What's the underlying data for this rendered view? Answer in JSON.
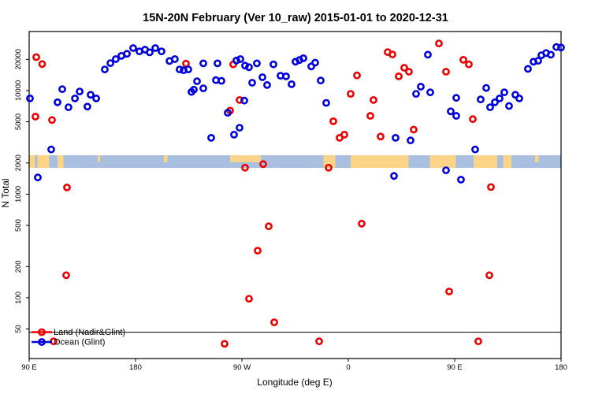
{
  "title": "15N-20N February (Ver 10_raw)   2015-01-01 to 2020-12-31",
  "chart_data": {
    "type": "scatter",
    "title": "15N-20N February (Ver 10_raw)   2015-01-01 to 2020-12-31",
    "xlabel": "Longitude (deg E)",
    "ylabel": "N Total",
    "y_scale": "log",
    "ylim": [
      43,
      32000
    ],
    "y_ticks": [
      50,
      100,
      200,
      500,
      1000,
      2000,
      5000,
      10000,
      20000
    ],
    "x_ticks": [
      {
        "pos": 0,
        "label": "90 E"
      },
      {
        "pos": 90,
        "label": "180"
      },
      {
        "pos": 180,
        "label": "90 W"
      },
      {
        "pos": 270,
        "label": "0"
      },
      {
        "pos": 360,
        "label": "90 E"
      },
      {
        "pos": 450,
        "label": "180"
      }
    ],
    "x_axis_span_deg": 450,
    "grid": false,
    "threshold_n": 46.5,
    "legend_position": "bottom-left",
    "legend": [
      {
        "label": "Land (Nadir&Glint)",
        "color": "#EE0000"
      },
      {
        "label": "Ocean (Glint)",
        "color": "#0000DD"
      }
    ],
    "map_band": {
      "n_top": 2375,
      "n_bottom": 1795,
      "ocean_color": "#A9BFDF",
      "land_color": "#FBD488",
      "land_segments": [
        {
          "from": 0,
          "to": 5,
          "half": false
        },
        {
          "from": 7,
          "to": 17,
          "half": false
        },
        {
          "from": 24,
          "to": 29,
          "half": false
        },
        {
          "from": 58,
          "to": 60,
          "half": true
        },
        {
          "from": 114,
          "to": 117,
          "half": true
        },
        {
          "from": 170,
          "to": 196,
          "half": true
        },
        {
          "from": 249,
          "to": 259,
          "half": false
        },
        {
          "from": 272,
          "to": 321,
          "half": false
        },
        {
          "from": 339,
          "to": 361,
          "half": false
        },
        {
          "from": 376,
          "to": 396,
          "half": false
        },
        {
          "from": 401,
          "to": 408,
          "half": false
        },
        {
          "from": 428,
          "to": 431,
          "half": true
        }
      ]
    },
    "series": [
      {
        "name": "Land (Nadir&Glint)",
        "color": "#EE0000",
        "points": [
          [
            6,
            21000
          ],
          [
            11,
            18000
          ],
          [
            5.3,
            5600
          ],
          [
            19.3,
            5200
          ],
          [
            32,
            1160
          ],
          [
            31.3,
            165
          ],
          [
            20.7,
            38
          ],
          [
            132.7,
            18200
          ],
          [
            172.7,
            17900
          ],
          [
            178,
            8100
          ],
          [
            170,
            6400
          ],
          [
            182.7,
            1800
          ],
          [
            198,
            1950
          ],
          [
            202.7,
            490
          ],
          [
            193.3,
            285
          ],
          [
            186,
            98
          ],
          [
            207.3,
            58
          ],
          [
            165.3,
            36
          ],
          [
            245.3,
            38
          ],
          [
            253.3,
            1800
          ],
          [
            257.3,
            5050
          ],
          [
            262.7,
            3500
          ],
          [
            266.7,
            3750
          ],
          [
            272,
            9300
          ],
          [
            277.3,
            14000
          ],
          [
            281.3,
            520
          ],
          [
            288.7,
            5700
          ],
          [
            291.3,
            8100
          ],
          [
            297.3,
            3600
          ],
          [
            303.3,
            23500
          ],
          [
            307.3,
            22300
          ],
          [
            312.7,
            13700
          ],
          [
            317.3,
            16600
          ],
          [
            321.3,
            15200
          ],
          [
            325.3,
            4200
          ],
          [
            346.7,
            28500
          ],
          [
            352.7,
            15200
          ],
          [
            355.3,
            115
          ],
          [
            367.3,
            19800
          ],
          [
            372,
            17900
          ],
          [
            375.3,
            5300
          ],
          [
            380,
            38
          ],
          [
            389.3,
            165
          ],
          [
            390.7,
            1170
          ]
        ]
      },
      {
        "name": "Ocean (Glint)",
        "color": "#0000DD",
        "points": [
          [
            0.7,
            8400
          ],
          [
            7.3,
            1450
          ],
          [
            18.7,
            2700
          ],
          [
            24,
            7700
          ],
          [
            28,
            10300
          ],
          [
            33.3,
            6900
          ],
          [
            38.7,
            8400
          ],
          [
            42.7,
            9800
          ],
          [
            49.3,
            7000
          ],
          [
            52,
            9100
          ],
          [
            56.7,
            8400
          ],
          [
            64,
            16000
          ],
          [
            68.7,
            18400
          ],
          [
            73.3,
            20100
          ],
          [
            78,
            21600
          ],
          [
            82.7,
            22600
          ],
          [
            88,
            25700
          ],
          [
            93.3,
            23900
          ],
          [
            98,
            24800
          ],
          [
            102,
            23400
          ],
          [
            106.7,
            25700
          ],
          [
            112,
            23900
          ],
          [
            118.7,
            19300
          ],
          [
            123.3,
            20100
          ],
          [
            127.3,
            16000
          ],
          [
            130.7,
            15700
          ],
          [
            134.7,
            16000
          ],
          [
            137.3,
            9700
          ],
          [
            139.3,
            10200
          ],
          [
            142,
            12300
          ],
          [
            147.3,
            18300
          ],
          [
            147.3,
            10500
          ],
          [
            154,
            3500
          ],
          [
            158,
            12600
          ],
          [
            159.3,
            18300
          ],
          [
            162.7,
            12400
          ],
          [
            168,
            6100
          ],
          [
            173.3,
            3750
          ],
          [
            175.3,
            19500
          ],
          [
            178,
            4380
          ],
          [
            178.7,
            20100
          ],
          [
            182,
            8000
          ],
          [
            182.7,
            17400
          ],
          [
            186,
            16800
          ],
          [
            188.7,
            11900
          ],
          [
            192.7,
            18300
          ],
          [
            197.3,
            13450
          ],
          [
            201.3,
            11300
          ],
          [
            206.7,
            17900
          ],
          [
            212.7,
            13900
          ],
          [
            217.3,
            13700
          ],
          [
            222,
            11500
          ],
          [
            225.3,
            19000
          ],
          [
            228.7,
            19700
          ],
          [
            232,
            20500
          ],
          [
            238.7,
            17100
          ],
          [
            242,
            18600
          ],
          [
            246.7,
            12500
          ],
          [
            251.3,
            7600
          ],
          [
            308.7,
            1500
          ],
          [
            310,
            3500
          ],
          [
            322.7,
            3300
          ],
          [
            327.3,
            9300
          ],
          [
            331.3,
            10900
          ],
          [
            337.3,
            22200
          ],
          [
            339.3,
            9600
          ],
          [
            352.7,
            1700
          ],
          [
            356.7,
            6300
          ],
          [
            361.3,
            8500
          ],
          [
            361.3,
            5700
          ],
          [
            365.3,
            1380
          ],
          [
            377.3,
            2700
          ],
          [
            382,
            8200
          ],
          [
            386.7,
            10600
          ],
          [
            390,
            6900
          ],
          [
            394,
            7700
          ],
          [
            398,
            8400
          ],
          [
            402,
            9600
          ],
          [
            406,
            7100
          ],
          [
            411.3,
            9100
          ],
          [
            414.7,
            8400
          ],
          [
            422,
            16200
          ],
          [
            426.7,
            19000
          ],
          [
            430.7,
            19400
          ],
          [
            433.3,
            21900
          ],
          [
            437.3,
            23000
          ],
          [
            441.3,
            22200
          ],
          [
            446,
            26300
          ],
          [
            450,
            26000
          ]
        ]
      }
    ]
  }
}
